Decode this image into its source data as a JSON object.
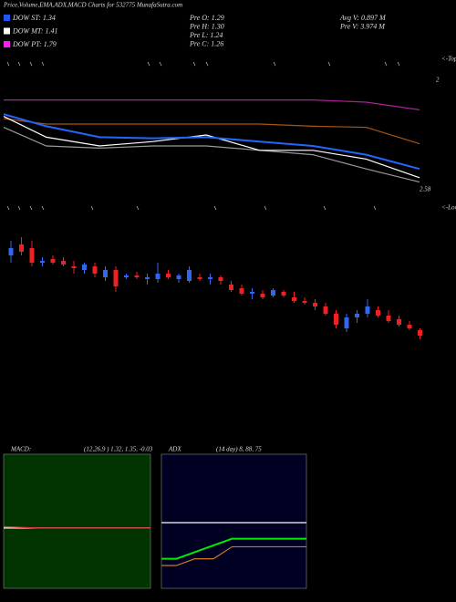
{
  "chart_data": [
    {
      "type": "candlestick",
      "title": "Price,Volume,EMA,ADX,MACD Charts for 532775 MunafaSutra.com",
      "legend": [
        {
          "label": "DOW ST: 1.34",
          "color": "#2255ee"
        },
        {
          "label": "DOW MT: 1.41",
          "color": "#ffffff"
        },
        {
          "label": "DOW PT: 1.79",
          "color": "#ee22ee"
        }
      ],
      "stats": [
        "Pre  O: 1.29",
        "Pre  H: 1.30",
        "Pre  L: 1.24",
        "Pre  C: 1.26",
        "Avg V: 0.897 M",
        "Pre  V: 3.974  M"
      ],
      "annotations": [
        "<-Tops",
        "2",
        "2.58",
        "<-Lows"
      ],
      "open": [
        1.7,
        1.76,
        1.74,
        1.66,
        1.68,
        1.67,
        1.64,
        1.62,
        1.64,
        1.58,
        1.62,
        1.58,
        1.59,
        1.57,
        1.57,
        1.6,
        1.57,
        1.56,
        1.58,
        1.57,
        1.58,
        1.54,
        1.52,
        1.49,
        1.49,
        1.48,
        1.5,
        1.47,
        1.45,
        1.44,
        1.42,
        1.38,
        1.3,
        1.36,
        1.38,
        1.4,
        1.37,
        1.35,
        1.32,
        1.29
      ],
      "high": [
        1.78,
        1.8,
        1.78,
        1.69,
        1.7,
        1.69,
        1.67,
        1.66,
        1.66,
        1.64,
        1.64,
        1.6,
        1.61,
        1.6,
        1.66,
        1.62,
        1.6,
        1.64,
        1.6,
        1.6,
        1.59,
        1.56,
        1.54,
        1.52,
        1.51,
        1.52,
        1.51,
        1.5,
        1.47,
        1.46,
        1.44,
        1.4,
        1.38,
        1.4,
        1.46,
        1.42,
        1.4,
        1.37,
        1.34,
        1.3
      ],
      "low": [
        1.66,
        1.7,
        1.64,
        1.64,
        1.65,
        1.64,
        1.6,
        1.6,
        1.58,
        1.56,
        1.5,
        1.57,
        1.57,
        1.54,
        1.55,
        1.57,
        1.55,
        1.55,
        1.56,
        1.54,
        1.54,
        1.5,
        1.48,
        1.46,
        1.46,
        1.47,
        1.47,
        1.44,
        1.43,
        1.4,
        1.37,
        1.3,
        1.28,
        1.33,
        1.36,
        1.36,
        1.33,
        1.31,
        1.29,
        1.24
      ],
      "close": [
        1.74,
        1.72,
        1.66,
        1.67,
        1.66,
        1.65,
        1.63,
        1.65,
        1.6,
        1.62,
        1.53,
        1.59,
        1.58,
        1.58,
        1.6,
        1.58,
        1.59,
        1.62,
        1.57,
        1.58,
        1.56,
        1.51,
        1.49,
        1.5,
        1.47,
        1.51,
        1.48,
        1.45,
        1.44,
        1.42,
        1.38,
        1.32,
        1.36,
        1.38,
        1.42,
        1.37,
        1.34,
        1.32,
        1.3,
        1.26
      ],
      "up_color": "#3366ee",
      "down_color": "#ee2222",
      "ylim": [
        1.1,
        2.0
      ]
    },
    {
      "type": "line",
      "x": [
        1,
        5,
        10,
        15,
        20,
        25,
        30,
        35,
        40
      ],
      "xlim": [
        1,
        40
      ],
      "ylim": [
        1.0,
        2.0
      ],
      "series": [
        {
          "color": "#aa2299",
          "values": [
            1.82,
            1.82,
            1.82,
            1.82,
            1.82,
            1.82,
            1.82,
            1.8,
            1.73
          ]
        },
        {
          "color": "#aa5511",
          "values": [
            1.65,
            1.6,
            1.6,
            1.6,
            1.6,
            1.6,
            1.58,
            1.57,
            1.42
          ]
        },
        {
          "color": "#999999",
          "values": [
            1.57,
            1.4,
            1.38,
            1.4,
            1.4,
            1.36,
            1.32,
            1.19,
            1.07
          ]
        },
        {
          "color": "#ffffff",
          "values": [
            1.67,
            1.48,
            1.4,
            1.44,
            1.5,
            1.36,
            1.36,
            1.28,
            1.11
          ]
        },
        {
          "color": "#2266ff",
          "values": [
            1.69,
            1.58,
            1.48,
            1.47,
            1.48,
            1.44,
            1.4,
            1.32,
            1.19
          ]
        }
      ]
    },
    {
      "type": "line",
      "title": "MACD:",
      "subtitle": "(12,26,9 ) 1.32, 1.35, -0.03",
      "background": "#003300",
      "x": [
        1,
        5,
        10,
        15,
        20,
        25,
        30,
        35,
        40
      ],
      "xlim": [
        1,
        40
      ],
      "ylim": [
        -1,
        1
      ],
      "series": [
        {
          "color": "#ffffff",
          "values": [
            -0.1,
            -0.1,
            -0.1,
            -0.1,
            -0.1,
            -0.1,
            -0.1,
            -0.1,
            -0.1
          ]
        },
        {
          "color": "#ee3333",
          "values": [
            -0.08,
            -0.09,
            -0.1,
            -0.1,
            -0.1,
            -0.1,
            -0.1,
            -0.1,
            -0.1
          ]
        }
      ]
    },
    {
      "type": "line",
      "title": "ADX",
      "subtitle": "(14  day) 8, 88, 75",
      "background": "#000022",
      "x": [
        1,
        5,
        10,
        15,
        20,
        25,
        30,
        35,
        40
      ],
      "xlim": [
        1,
        40
      ],
      "ylim": [
        0,
        100
      ],
      "series": [
        {
          "color": "#ffffff",
          "values": [
            49,
            49,
            49,
            49,
            49,
            49,
            49,
            49,
            49
          ]
        },
        {
          "color": "#00ee00",
          "values": [
            22,
            22,
            27,
            32,
            37,
            37,
            37,
            37,
            37
          ]
        },
        {
          "color": "#cc7722",
          "values": [
            17,
            17,
            22,
            22,
            31,
            31,
            31,
            31,
            31
          ]
        }
      ]
    }
  ]
}
